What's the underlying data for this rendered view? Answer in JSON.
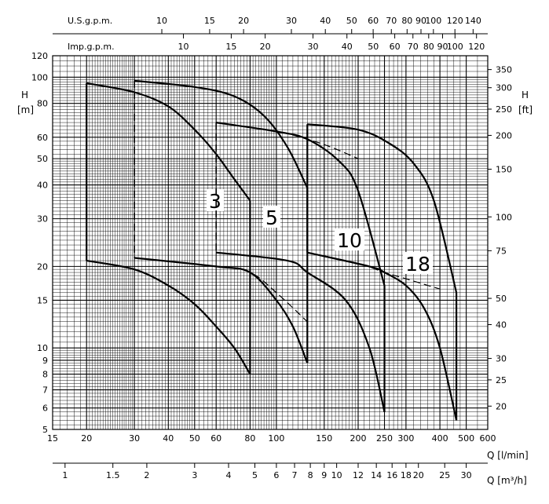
{
  "chart_data": {
    "type": "line",
    "x_scale": "log",
    "y_scale": "log",
    "x_range": [
      15,
      600
    ],
    "y_range": [
      5,
      120
    ],
    "grid": true,
    "xlabel": "Q [l/min]",
    "ylabel": "H [m]",
    "y2label": "H [ft]",
    "x2label": "Q [m³/h]",
    "x_ticks": [
      15,
      20,
      30,
      40,
      50,
      60,
      80,
      100,
      150,
      200,
      250,
      300,
      400,
      500,
      600
    ],
    "y_ticks": [
      5,
      6,
      7,
      8,
      9,
      10,
      15,
      20,
      30,
      40,
      50,
      60,
      80,
      100,
      120
    ],
    "ft_ticks": [
      20,
      25,
      30,
      40,
      50,
      75,
      100,
      150,
      200,
      250,
      300,
      350
    ],
    "m3h_ticks": [
      "1",
      "1.5",
      "2",
      "3",
      "4",
      "5",
      "6",
      "7",
      "8",
      "9",
      "10",
      "12",
      "14",
      "16",
      "18",
      "20",
      "25",
      "30"
    ],
    "usgpm_label": "U.S.g.p.m.",
    "usgpm_ticks": [
      10,
      15,
      20,
      30,
      40,
      50,
      60,
      70,
      80,
      90,
      100,
      120,
      140
    ],
    "impgpm_label": "Imp.g.p.m.",
    "impgpm_ticks": [
      10,
      15,
      20,
      30,
      40,
      50,
      60,
      70,
      80,
      90,
      100,
      120
    ],
    "series": [
      {
        "name": "3",
        "max_curve": [
          [
            20,
            95
          ],
          [
            30,
            88
          ],
          [
            40,
            78
          ],
          [
            50,
            64
          ],
          [
            60,
            52
          ],
          [
            70,
            42
          ],
          [
            80,
            35
          ]
        ],
        "min_curve": [
          [
            20,
            21
          ],
          [
            30,
            19.5
          ],
          [
            40,
            17
          ],
          [
            50,
            14.5
          ],
          [
            60,
            12
          ],
          [
            70,
            10
          ],
          [
            80,
            8
          ]
        ],
        "boundary": [
          [
            30,
            21.5
          ],
          [
            60,
            20
          ],
          [
            80,
            19
          ],
          [
            100,
            16
          ],
          [
            130,
            12.5
          ]
        ]
      },
      {
        "name": "5",
        "max_curve": [
          [
            30,
            97
          ],
          [
            50,
            92
          ],
          [
            70,
            85
          ],
          [
            90,
            72
          ],
          [
            110,
            55
          ],
          [
            130,
            39
          ]
        ],
        "min_curve": [
          [
            30,
            21.5
          ],
          [
            60,
            20
          ],
          [
            80,
            19
          ],
          [
            100,
            15
          ],
          [
            115,
            12
          ],
          [
            130,
            8.8
          ]
        ],
        "boundary": [
          [
            60,
            68
          ],
          [
            100,
            63
          ],
          [
            130,
            59
          ],
          [
            160,
            55
          ],
          [
            200,
            50
          ]
        ]
      },
      {
        "name": "10",
        "max_curve": [
          [
            60,
            68
          ],
          [
            100,
            63
          ],
          [
            130,
            59
          ],
          [
            170,
            49
          ],
          [
            200,
            38
          ],
          [
            250,
            17
          ]
        ],
        "min_curve": [
          [
            60,
            22.5
          ],
          [
            110,
            21
          ],
          [
            130,
            19
          ],
          [
            180,
            15
          ],
          [
            220,
            10
          ],
          [
            250,
            5.8
          ]
        ],
        "boundary": [
          [
            130,
            22.5
          ],
          [
            200,
            20.5
          ],
          [
            250,
            19
          ],
          [
            300,
            18
          ],
          [
            400,
            16.5
          ]
        ]
      },
      {
        "name": "18",
        "max_curve": [
          [
            130,
            67
          ],
          [
            200,
            64
          ],
          [
            260,
            57
          ],
          [
            320,
            48
          ],
          [
            380,
            35
          ],
          [
            460,
            16
          ]
        ],
        "min_curve": [
          [
            130,
            22.5
          ],
          [
            220,
            20
          ],
          [
            250,
            19
          ],
          [
            300,
            17
          ],
          [
            350,
            14
          ],
          [
            400,
            10
          ],
          [
            460,
            5.4
          ]
        ]
      }
    ]
  }
}
